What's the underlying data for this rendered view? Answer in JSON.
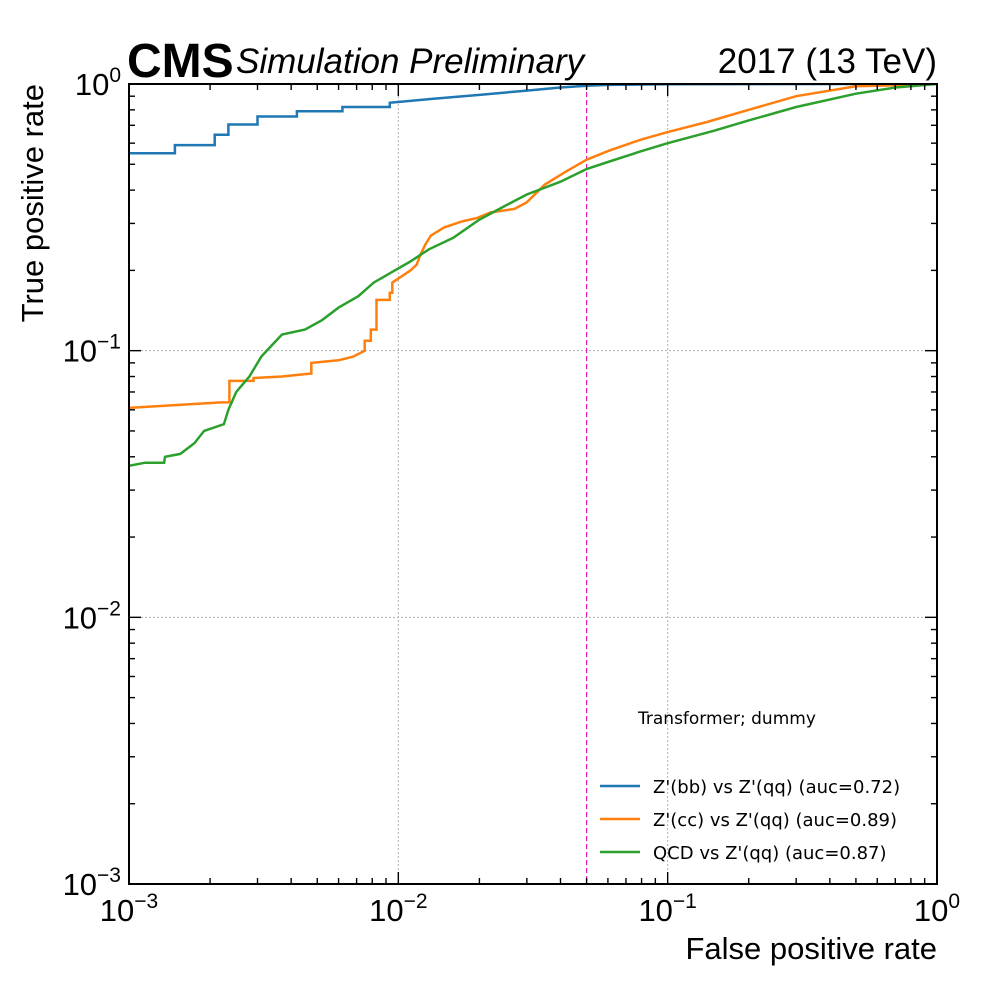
{
  "header": {
    "cms_label": "CMS",
    "status_label": "Simulation Preliminary",
    "lumi_label": "2017 (13 TeV)"
  },
  "chart_data": {
    "type": "line",
    "title": "",
    "xlabel": "False positive rate",
    "ylabel": "True positive rate",
    "xscale": "log",
    "yscale": "log",
    "xlim": [
      0.001,
      1
    ],
    "ylim": [
      0.001,
      1
    ],
    "x_ticks": [
      {
        "base": "10",
        "exp": "−3",
        "value": 0.001
      },
      {
        "base": "10",
        "exp": "−2",
        "value": 0.01
      },
      {
        "base": "10",
        "exp": "−1",
        "value": 0.1
      },
      {
        "base": "10",
        "exp": "0",
        "value": 1
      }
    ],
    "y_ticks": [
      {
        "base": "10",
        "exp": "−3",
        "value": 0.001
      },
      {
        "base": "10",
        "exp": "−2",
        "value": 0.01
      },
      {
        "base": "10",
        "exp": "−1",
        "value": 0.1
      },
      {
        "base": "10",
        "exp": "0",
        "value": 1
      }
    ],
    "grid": true,
    "legend_title": "Transformer; dummy",
    "legend_position": "lower-right",
    "reference_line": {
      "axis": "x",
      "value": 0.05,
      "color": "#e41ab8",
      "style": "dashed"
    },
    "series": [
      {
        "name": "Z'(bb) vs Z'(qq) (auc=0.72)",
        "color": "#1f77b4",
        "x": [
          0.001,
          0.00148,
          0.00148,
          0.00208,
          0.00208,
          0.00234,
          0.00234,
          0.003,
          0.003,
          0.0042,
          0.0042,
          0.0062,
          0.0062,
          0.0093,
          0.0093,
          0.0135,
          0.02,
          0.03,
          0.04,
          0.05,
          0.06,
          0.08,
          0.1,
          0.2,
          0.5,
          1.0
        ],
        "y": [
          0.55,
          0.55,
          0.59,
          0.59,
          0.645,
          0.645,
          0.705,
          0.705,
          0.755,
          0.755,
          0.79,
          0.79,
          0.82,
          0.82,
          0.85,
          0.88,
          0.91,
          0.945,
          0.97,
          0.985,
          0.992,
          0.996,
          0.998,
          0.999,
          1.0,
          1.0
        ]
      },
      {
        "name": "Z'(cc) vs Z'(qq) (auc=0.89)",
        "color": "#ff7f0e",
        "x": [
          0.001,
          0.0022,
          0.00236,
          0.00236,
          0.0029,
          0.0029,
          0.0037,
          0.0047,
          0.00475,
          0.00475,
          0.006,
          0.0068,
          0.0075,
          0.0075,
          0.0079,
          0.0079,
          0.0083,
          0.0083,
          0.0093,
          0.0093,
          0.0095,
          0.0095,
          0.0111,
          0.0117,
          0.0121,
          0.0126,
          0.0132,
          0.0148,
          0.0172,
          0.0197,
          0.022,
          0.027,
          0.03,
          0.035,
          0.042,
          0.05,
          0.06,
          0.08,
          0.1,
          0.14,
          0.2,
          0.3,
          0.5,
          1.0
        ],
        "y": [
          0.061,
          0.064,
          0.064,
          0.077,
          0.077,
          0.079,
          0.08,
          0.082,
          0.082,
          0.09,
          0.092,
          0.095,
          0.1,
          0.109,
          0.109,
          0.12,
          0.12,
          0.155,
          0.155,
          0.165,
          0.165,
          0.18,
          0.2,
          0.21,
          0.23,
          0.25,
          0.27,
          0.29,
          0.305,
          0.315,
          0.33,
          0.34,
          0.36,
          0.42,
          0.47,
          0.52,
          0.56,
          0.62,
          0.66,
          0.72,
          0.8,
          0.9,
          0.98,
          1.0
        ],
        "step": false
      },
      {
        "name": "QCD vs Z'(qq) (auc=0.87)",
        "color": "#2ca02c",
        "x": [
          0.001,
          0.00115,
          0.00135,
          0.00136,
          0.00155,
          0.00175,
          0.0019,
          0.00225,
          0.00234,
          0.0025,
          0.0028,
          0.0031,
          0.0034,
          0.0037,
          0.0045,
          0.0052,
          0.006,
          0.0071,
          0.0081,
          0.0093,
          0.011,
          0.013,
          0.016,
          0.02,
          0.025,
          0.03,
          0.04,
          0.05,
          0.06,
          0.08,
          0.1,
          0.15,
          0.2,
          0.3,
          0.5,
          0.7,
          1.0
        ],
        "y": [
          0.037,
          0.038,
          0.038,
          0.04,
          0.041,
          0.045,
          0.05,
          0.053,
          0.06,
          0.07,
          0.08,
          0.095,
          0.105,
          0.115,
          0.12,
          0.13,
          0.145,
          0.16,
          0.18,
          0.195,
          0.215,
          0.24,
          0.265,
          0.31,
          0.35,
          0.385,
          0.43,
          0.48,
          0.51,
          0.56,
          0.6,
          0.67,
          0.73,
          0.82,
          0.92,
          0.97,
          1.0
        ]
      }
    ]
  }
}
